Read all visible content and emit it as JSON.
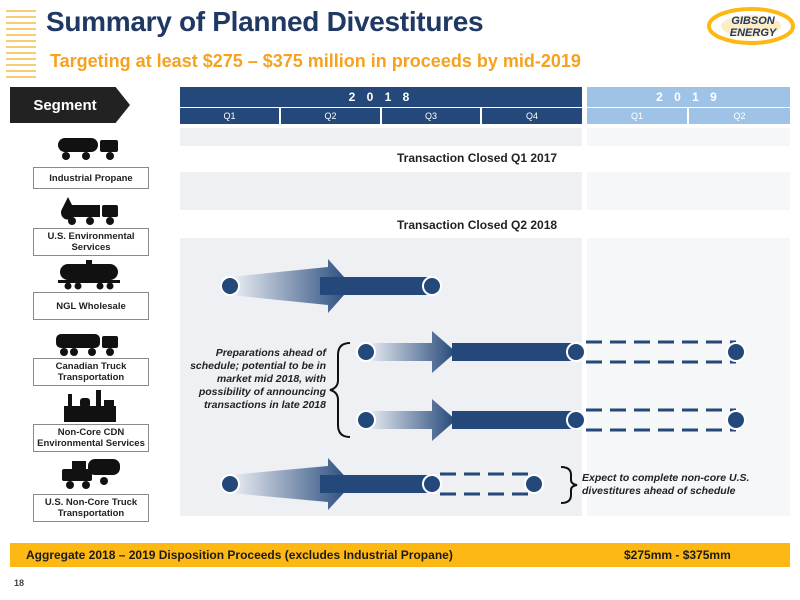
{
  "header": {
    "title": "Summary of Planned Divestitures",
    "subtitle": "Targeting at least $275 – $375 million in proceeds by mid-2019",
    "logo_text_top": "GIBSON",
    "logo_text_bottom": "ENERGY"
  },
  "segment_header": "Segment",
  "timeline": {
    "year_2018": "2 0 1 8",
    "year_2019": "2 0 1 9",
    "quarters_2018": [
      "Q1",
      "Q2",
      "Q3",
      "Q4"
    ],
    "quarters_2019": [
      "Q1",
      "Q2"
    ]
  },
  "segments": [
    {
      "label": "Industrial Propane",
      "icon": "propane-truck-icon"
    },
    {
      "label": "U.S. Environmental Services",
      "icon": "vacuum-truck-icon"
    },
    {
      "label": "NGL Wholesale",
      "icon": "rail-tank-car-icon"
    },
    {
      "label": "Canadian Truck Transportation",
      "icon": "tanker-truck-icon"
    },
    {
      "label": "Non-Core CDN Environmental Services",
      "icon": "facility-icon"
    },
    {
      "label": "U.S. Non-Core Truck Transportation",
      "icon": "trucks-icon"
    }
  ],
  "transactions": {
    "closed_q1_2017": "Transaction Closed Q1 2017",
    "closed_q2_2018": "Transaction Closed Q2 2018"
  },
  "notes": {
    "preparations": "Preparations ahead of schedule; potential to be in market mid 2018, with possibility of announcing transactions in late 2018",
    "expect": "Expect to complete non-core U.S. divestitures ahead of schedule"
  },
  "footer": {
    "label": "Aggregate 2018 – 2019 Disposition Proceeds (excludes Industrial Propane)",
    "value": "$275mm - $375mm"
  },
  "page_number": "18",
  "colors": {
    "navy": "#1f3864",
    "bar_blue": "#24487a",
    "light_blue": "#9fc3e7",
    "accent_yellow": "#fdb813",
    "accent_orange": "#f6a21e"
  }
}
